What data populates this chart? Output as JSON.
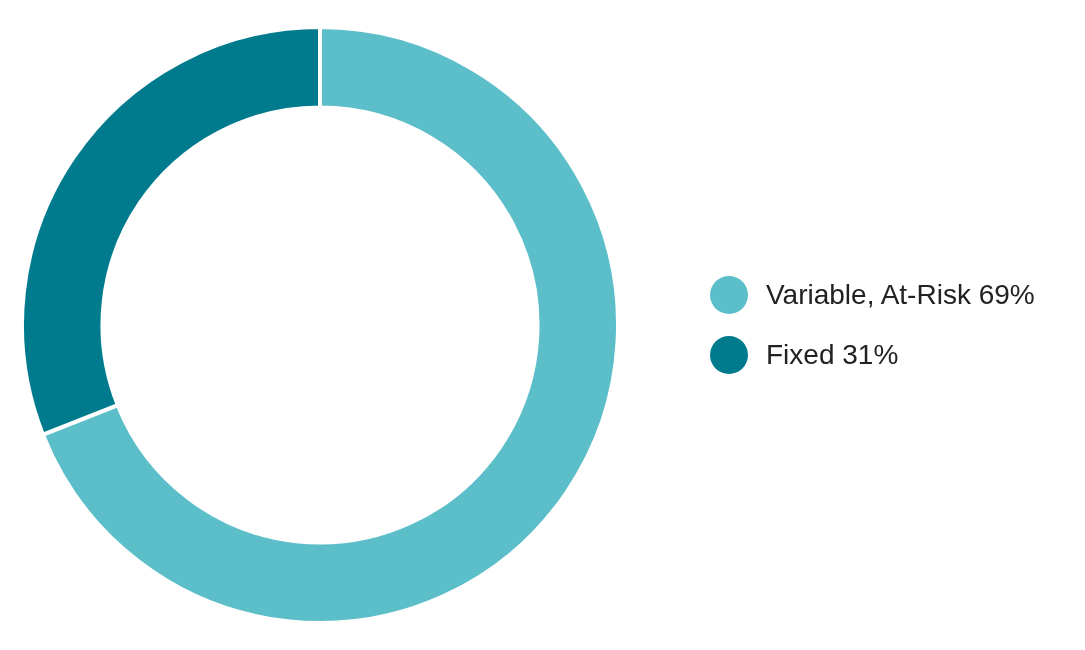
{
  "chart_data": {
    "type": "donut",
    "categories": [
      "Variable, At-Risk 69%",
      "Fixed 31%"
    ],
    "values": [
      69,
      31
    ],
    "colors": [
      "#5bbec9",
      "#007b8e"
    ],
    "legend": "right"
  }
}
